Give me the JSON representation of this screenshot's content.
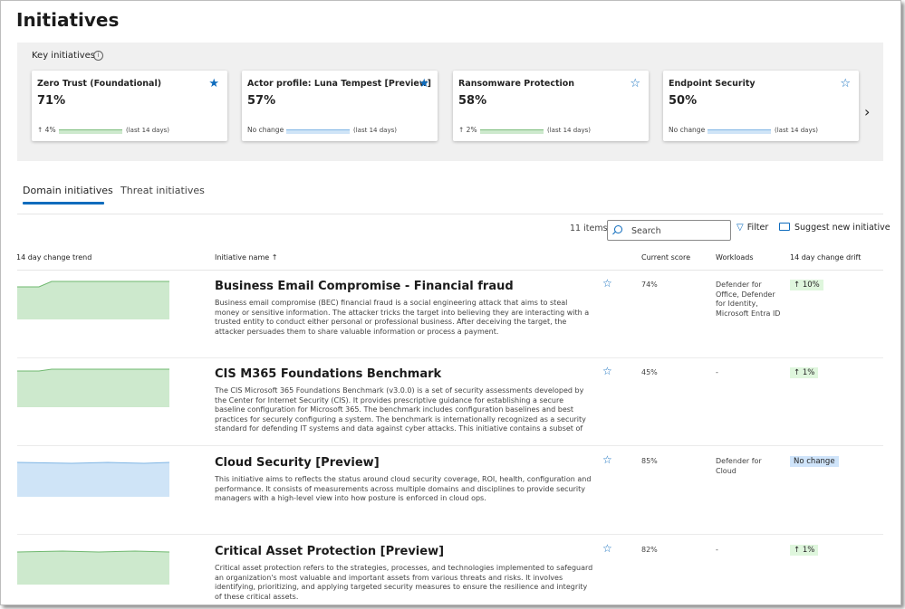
{
  "page": {
    "title": "Initiatives"
  },
  "key_initiatives": {
    "title": "Key initiatives",
    "cards": [
      {
        "title": "Zero Trust (Foundational)",
        "score": "71%",
        "starred": true,
        "trend_text": "↑ 4%",
        "trend_color": "green",
        "period": "(last 14 days)"
      },
      {
        "title": "Actor profile: Luna Tempest [Preview]",
        "score": "57%",
        "starred": true,
        "trend_text": "No change",
        "trend_color": "blue",
        "period": "(last 14 days)"
      },
      {
        "title": "Ransomware Protection",
        "score": "58%",
        "starred": false,
        "trend_text": "↑ 2%",
        "trend_color": "green",
        "period": "(last 14 days)"
      },
      {
        "title": "Endpoint Security",
        "score": "50%",
        "starred": false,
        "trend_text": "No change",
        "trend_color": "blue",
        "period": "(last 14 days)"
      }
    ]
  },
  "tabs": [
    {
      "label": "Domain initiatives",
      "active": true
    },
    {
      "label": "Threat initiatives",
      "active": false
    }
  ],
  "toolbar": {
    "item_count": "11 items",
    "search_placeholder": "Search",
    "filter_label": "Filter",
    "suggest_label": "Suggest new initiative"
  },
  "table": {
    "headers": {
      "trend": "14 day change trend",
      "name": "Initiative name ↑",
      "score": "Current score",
      "workloads": "Workloads",
      "drift": "14 day change drift"
    },
    "rows": [
      {
        "name": "Business Email Compromise - Financial fraud",
        "description": "Business email compromise (BEC) financial fraud is a social engineering attack that aims to steal money or sensitive information. The attacker tricks the target into believing they are interacting with a trusted entity to conduct either personal or professional business. After deceiving the target, the attacker persuades them to share valuable information or process a payment.",
        "score": "74%",
        "workloads": "Defender for Office, Defender for Identity, Microsoft Entra ID",
        "drift": "↑ 10%",
        "drift_color": "green",
        "trend_color": "green"
      },
      {
        "name": "CIS M365 Foundations Benchmark",
        "description": "The CIS Microsoft 365 Foundations Benchmark (v3.0.0) is a set of security assessments developed by the Center for Internet Security (CIS). It provides prescriptive guidance for establishing a secure baseline configuration for Microsoft 365. The benchmark includes configuration baselines and best practices for securely configuring a system. The benchmark is internationally recognized as a security standard for defending IT systems and data against cyber attacks. This initiative contains a subset of security assessments recommended by the CIS",
        "score": "45%",
        "workloads": "-",
        "drift": "↑ 1%",
        "drift_color": "green",
        "trend_color": "green"
      },
      {
        "name": "Cloud Security [Preview]",
        "description": "This initiative aims to reflects the status around cloud security coverage, ROI, health, configuration and performance. It consists of measurements across multiple domains and disciplines to provide security managers with a high-level view into how posture is enforced in cloud ops.",
        "score": "85%",
        "workloads": "Defender for Cloud",
        "drift": "No change",
        "drift_color": "blue",
        "trend_color": "blue"
      },
      {
        "name": "Critical Asset Protection [Preview]",
        "description": "Critical asset protection refers to the strategies, processes, and technologies implemented to safeguard an organization's most valuable and important assets from various threats and risks. It involves identifying, prioritizing, and applying targeted security measures to ensure the resilience and integrity of these critical assets.",
        "score": "82%",
        "workloads": "-",
        "drift": "↑ 1%",
        "drift_color": "green",
        "trend_color": "green"
      }
    ]
  },
  "colors": {
    "accent": "#0f6cbd",
    "trend_green_fill": "#cde9cd",
    "trend_green_line": "#6fb86f",
    "trend_blue_fill": "#cfe4f7",
    "trend_blue_line": "#7fb5e4"
  }
}
